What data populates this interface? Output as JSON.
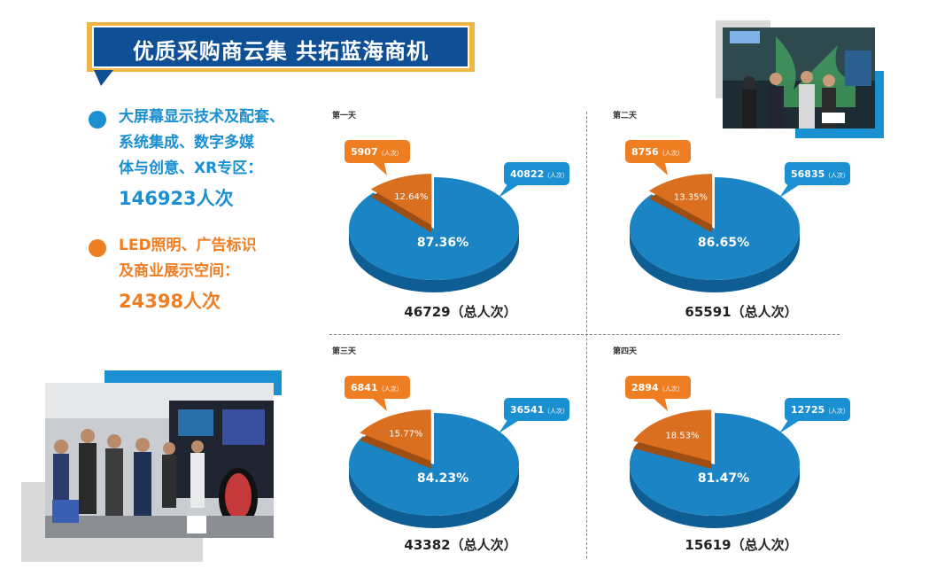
{
  "banner": {
    "title": "优质采购商云集 共拓蓝海商机"
  },
  "zones": [
    {
      "lines": [
        "大屏幕显示技术及配套、",
        "系统集成、数字多媒",
        "体与创意、XR专区："
      ],
      "count": "146923人次",
      "color": "#1a8fd1"
    },
    {
      "lines": [
        "LED照明、广告标识",
        "及商业展示空间："
      ],
      "count": "24398人次",
      "color": "#ef7d22"
    }
  ],
  "colors": {
    "blue": "#1a84c4",
    "blue_dark": "#0e5d93",
    "orange": "#d96f1f",
    "orange_dark": "#9e4e12",
    "callout_blue": "#1a8fd1",
    "callout_orange": "#ef7d22"
  },
  "chart_data": [
    {
      "type": "pie",
      "title": "第一天",
      "total_label": "46729（总人次）",
      "slices": [
        {
          "value": 40822,
          "pct_label": "87.36%",
          "callout": "40822",
          "unit": "（人次）"
        },
        {
          "value": 5907,
          "pct_label": "12.64%",
          "callout": "5907",
          "unit": "（人次）"
        }
      ]
    },
    {
      "type": "pie",
      "title": "第二天",
      "total_label": "65591（总人次）",
      "slices": [
        {
          "value": 56835,
          "pct_label": "86.65%",
          "callout": "56835",
          "unit": "（人次）"
        },
        {
          "value": 8756,
          "pct_label": "13.35%",
          "callout": "8756",
          "unit": "（人次）"
        }
      ]
    },
    {
      "type": "pie",
      "title": "第三天",
      "total_label": "43382（总人次）",
      "slices": [
        {
          "value": 36541,
          "pct_label": "84.23%",
          "callout": "36541",
          "unit": "（人次）"
        },
        {
          "value": 6841,
          "pct_label": "15.77%",
          "callout": "6841",
          "unit": "（人次）"
        }
      ]
    },
    {
      "type": "pie",
      "title": "第四天",
      "total_label": "15619（总人次）",
      "slices": [
        {
          "value": 12725,
          "pct_label": "81.47%",
          "callout": "12725",
          "unit": "（人次）"
        },
        {
          "value": 2894,
          "pct_label": "18.53%",
          "callout": "2894",
          "unit": "（人次）"
        }
      ]
    }
  ]
}
